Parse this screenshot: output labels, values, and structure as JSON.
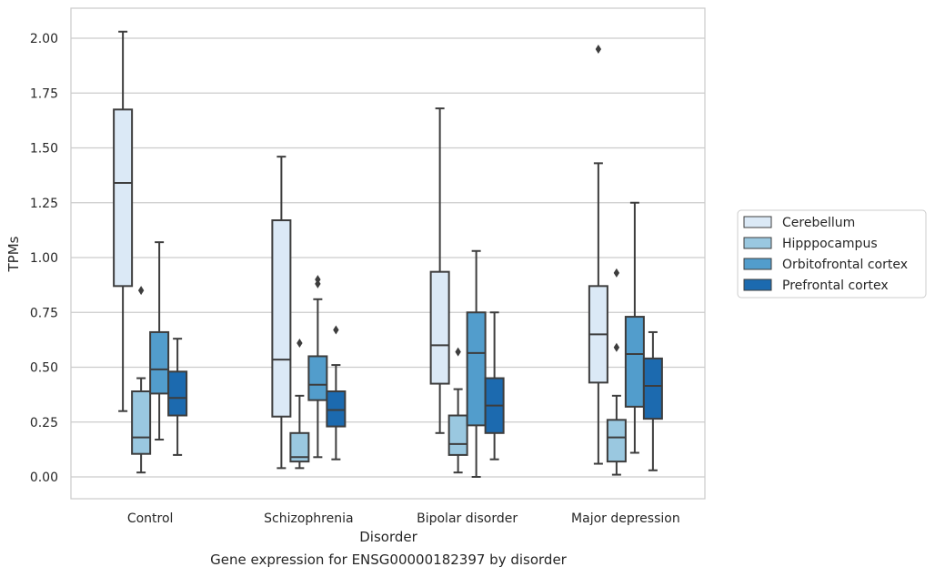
{
  "caption": "Gene expression for ENSG00000182397 by disorder",
  "chart_data": {
    "type": "box",
    "title": "",
    "xlabel": "Disorder",
    "ylabel": "TPMs",
    "ylim": [
      -0.1,
      2.13
    ],
    "yticks": [
      "0.00",
      "0.25",
      "0.50",
      "0.75",
      "1.00",
      "1.25",
      "1.50",
      "1.75",
      "2.00"
    ],
    "grid": "horizontal",
    "legend_position": "right",
    "categories": [
      "Control",
      "Schizophrenia",
      "Bipolar disorder",
      "Major depression"
    ],
    "series": [
      {
        "name": "Cerebellum",
        "color": "#dbe9f6",
        "boxes": [
          {
            "whislo": 0.3,
            "q1": 0.87,
            "med": 1.34,
            "q3": 1.675,
            "whishi": 2.03,
            "fliers": []
          },
          {
            "whislo": 0.04,
            "q1": 0.275,
            "med": 0.535,
            "q3": 1.17,
            "whishi": 1.46,
            "fliers": []
          },
          {
            "whislo": 0.2,
            "q1": 0.425,
            "med": 0.6,
            "q3": 0.935,
            "whishi": 1.68,
            "fliers": []
          },
          {
            "whislo": 0.06,
            "q1": 0.43,
            "med": 0.65,
            "q3": 0.87,
            "whishi": 1.43,
            "fliers": [
              1.95
            ]
          }
        ]
      },
      {
        "name": "Hipppocampus",
        "color": "#9ac8e0",
        "boxes": [
          {
            "whislo": 0.02,
            "q1": 0.105,
            "med": 0.18,
            "q3": 0.39,
            "whishi": 0.45,
            "fliers": [
              0.85
            ]
          },
          {
            "whislo": 0.04,
            "q1": 0.07,
            "med": 0.09,
            "q3": 0.2,
            "whishi": 0.37,
            "fliers": [
              0.61
            ]
          },
          {
            "whislo": 0.02,
            "q1": 0.1,
            "med": 0.15,
            "q3": 0.28,
            "whishi": 0.4,
            "fliers": [
              0.57
            ]
          },
          {
            "whislo": 0.01,
            "q1": 0.07,
            "med": 0.18,
            "q3": 0.26,
            "whishi": 0.37,
            "fliers": [
              0.59,
              0.93
            ]
          }
        ]
      },
      {
        "name": "Orbitofrontal cortex",
        "color": "#529dcc",
        "boxes": [
          {
            "whislo": 0.17,
            "q1": 0.38,
            "med": 0.49,
            "q3": 0.66,
            "whishi": 1.07,
            "fliers": []
          },
          {
            "whislo": 0.09,
            "q1": 0.35,
            "med": 0.42,
            "q3": 0.55,
            "whishi": 0.81,
            "fliers": [
              0.88,
              0.9
            ]
          },
          {
            "whislo": 0.0,
            "q1": 0.235,
            "med": 0.565,
            "q3": 0.75,
            "whishi": 1.03,
            "fliers": []
          },
          {
            "whislo": 0.11,
            "q1": 0.32,
            "med": 0.56,
            "q3": 0.73,
            "whishi": 1.25,
            "fliers": []
          }
        ]
      },
      {
        "name": "Prefrontal cortex",
        "color": "#1c6aaf",
        "boxes": [
          {
            "whislo": 0.1,
            "q1": 0.28,
            "med": 0.36,
            "q3": 0.48,
            "whishi": 0.63,
            "fliers": []
          },
          {
            "whislo": 0.08,
            "q1": 0.23,
            "med": 0.305,
            "q3": 0.39,
            "whishi": 0.51,
            "fliers": [
              0.67
            ]
          },
          {
            "whislo": 0.08,
            "q1": 0.2,
            "med": 0.325,
            "q3": 0.45,
            "whishi": 0.75,
            "fliers": []
          },
          {
            "whislo": 0.03,
            "q1": 0.265,
            "med": 0.415,
            "q3": 0.54,
            "whishi": 0.66,
            "fliers": []
          }
        ]
      }
    ]
  }
}
